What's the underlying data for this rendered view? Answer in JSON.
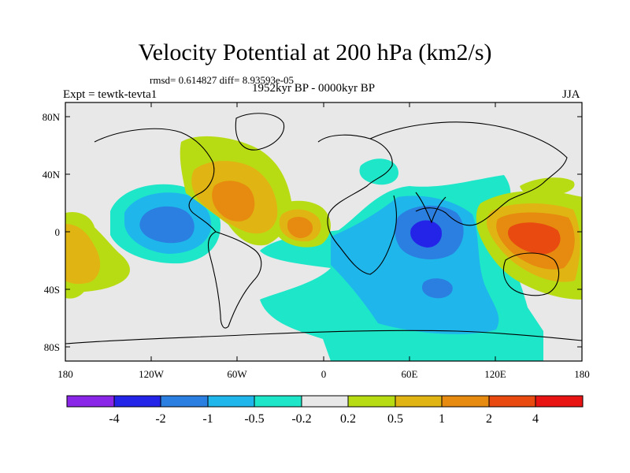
{
  "title": "Velocity Potential at 200 hPa (km2/s)",
  "stats": "rmsd= 0.614827 diff= 8.93593e-05",
  "experiment_left": "Expt = tewtk-tevta1",
  "period_center": "1952kyr BP - 0000kyr BP",
  "season_right": "JJA",
  "colors": {
    "ocean_bg": "#e8e8e8",
    "coast": "#000000",
    "neg4": "#8a26e8",
    "neg2": "#2424e8",
    "neg1": "#2a7fe0",
    "neg05": "#1fb6ec",
    "neg02": "#1de7c8",
    "zero": "#e8e8e8",
    "pos02": "#b8dc14",
    "pos05": "#e0b412",
    "pos1": "#e68a10",
    "pos2": "#e84a10",
    "pos4": "#e81414"
  },
  "chart_data": {
    "type": "heatmap",
    "projection": "cylindrical-equidistant",
    "x_ticks": [
      "180",
      "120W",
      "60W",
      "0",
      "60E",
      "120E",
      "180"
    ],
    "y_ticks": [
      "80N",
      "40N",
      "0",
      "40S",
      "80S"
    ],
    "xlim": [
      -180,
      180
    ],
    "ylim": [
      -90,
      90
    ],
    "colorbar": {
      "labels": [
        "-4",
        "-2",
        "-1",
        "-0.5",
        "-0.2",
        "0.2",
        "0.5",
        "1",
        "2",
        "4"
      ],
      "boundaries": [
        -4,
        -2,
        -1,
        -0.5,
        -0.2,
        0.2,
        0.5,
        1,
        2,
        4
      ],
      "bins": 11
    },
    "features": [
      {
        "name": "south-atlantic-indian-minimum",
        "lon": 60,
        "lat": -10,
        "value": -2.5
      },
      {
        "name": "east-pacific-minimum",
        "lon": -118,
        "lat": 0,
        "value": -1.2
      },
      {
        "name": "maritime-continent-maximum",
        "lon": 140,
        "lat": -5,
        "value": 1.6
      },
      {
        "name": "caribbean-maximum",
        "lon": -65,
        "lat": 20,
        "value": 1.2
      },
      {
        "name": "west-africa-maximum",
        "lon": -15,
        "lat": 2,
        "value": 1.1
      }
    ]
  }
}
